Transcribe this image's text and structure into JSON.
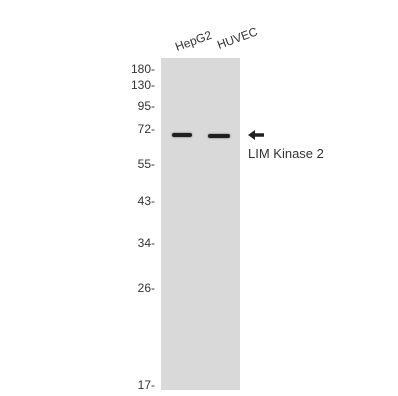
{
  "lanes": [
    "HepG2",
    "HUVEC"
  ],
  "markers": [
    "180-",
    "130-",
    "95-",
    "72-",
    "55-",
    "43-",
    "34-",
    "26-",
    "17-"
  ],
  "target": "LIM Kinase 2",
  "icons": {
    "arrow": "left-arrow-icon"
  },
  "colors": {
    "membrane": "#d9d9d9",
    "band": "#1f1f1f"
  }
}
